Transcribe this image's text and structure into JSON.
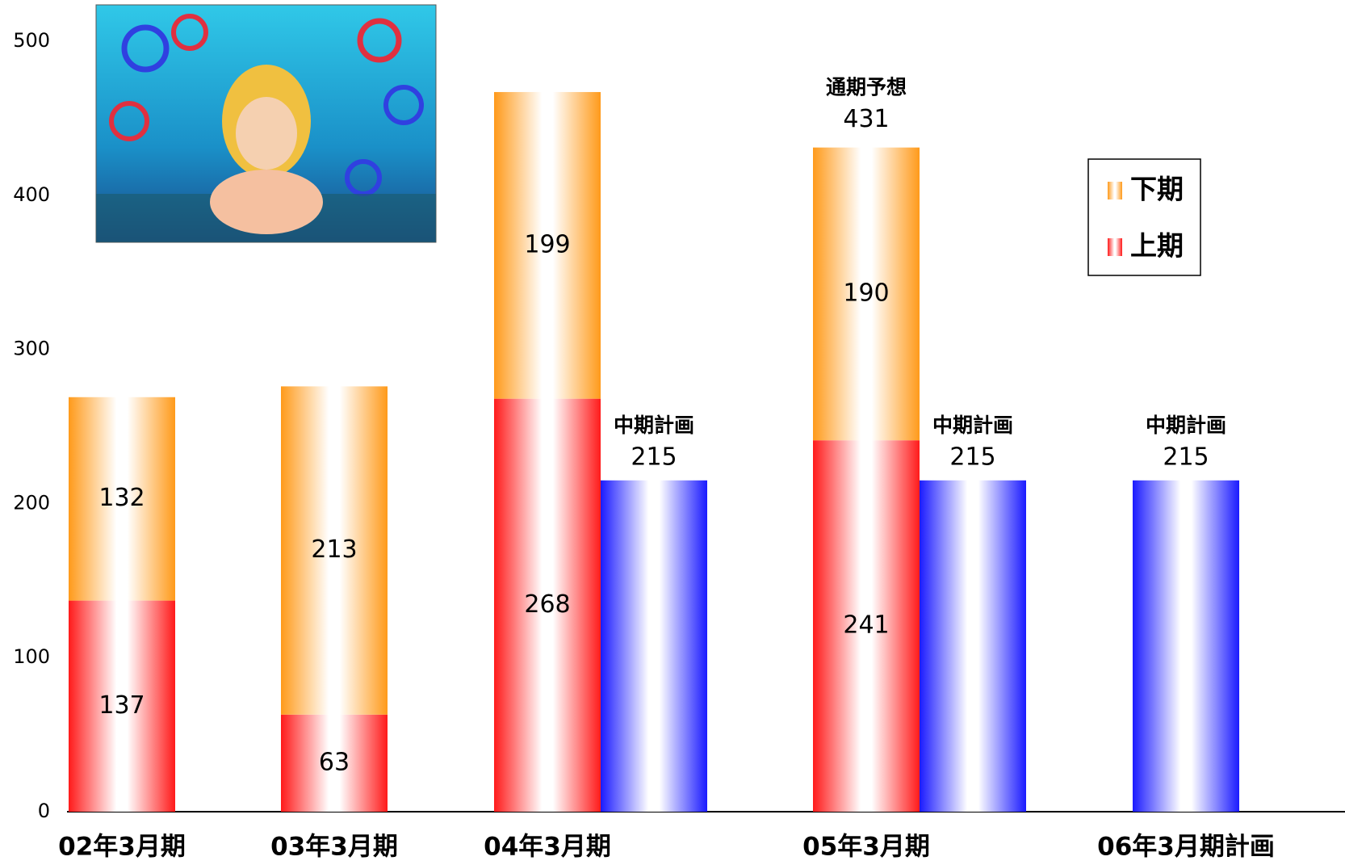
{
  "chart_data": {
    "type": "stacked-bar",
    "categories": [
      "02年3月期",
      "03年3月期",
      "04年3月期",
      "05年3月期",
      "06年3月期計画"
    ],
    "series": [
      {
        "name": "上期",
        "color": "#ff1a1a",
        "values": [
          137,
          63,
          268,
          241,
          null
        ]
      },
      {
        "name": "下期",
        "color": "#ff9a1a",
        "values": [
          132,
          213,
          199,
          190,
          null
        ]
      }
    ],
    "plan_series": {
      "name": "中期計画",
      "color": "#1a1aff",
      "values": [
        null,
        null,
        215,
        215,
        215
      ]
    },
    "forecast": {
      "label": "通期予想",
      "category": "05年3月期",
      "value": 431
    },
    "ylim": [
      0,
      500
    ],
    "yticks": [
      0,
      100,
      200,
      300,
      400,
      500
    ],
    "grid": false,
    "legend": "upper-right"
  }
}
